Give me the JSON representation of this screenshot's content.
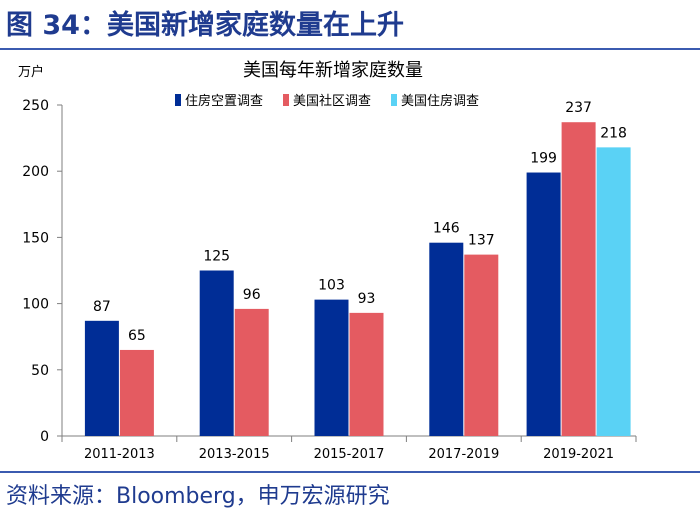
{
  "figure": {
    "title": "图 34：美国新增家庭数量在上升",
    "source": "资料来源：Bloomberg，申万宏源研究"
  },
  "chart_data": {
    "type": "bar",
    "title": "美国每年新增家庭数量",
    "unit_label": "万户",
    "xlabel": "",
    "ylabel": "万户",
    "ylim": [
      0,
      250
    ],
    "yticks": [
      0,
      50,
      100,
      150,
      200,
      250
    ],
    "categories": [
      "2011-2013",
      "2013-2015",
      "2015-2017",
      "2017-2019",
      "2019-2021"
    ],
    "series": [
      {
        "name": "住房空置调查",
        "color": "#002d96",
        "values": [
          87,
          125,
          103,
          146,
          199
        ]
      },
      {
        "name": "美国社区调查",
        "color": "#e45b61",
        "values": [
          65,
          96,
          93,
          137,
          237
        ]
      },
      {
        "name": "美国住房调查",
        "color": "#5ad2f5",
        "values": [
          null,
          null,
          null,
          null,
          218
        ]
      }
    ],
    "grid": false,
    "legend_position": "top"
  }
}
